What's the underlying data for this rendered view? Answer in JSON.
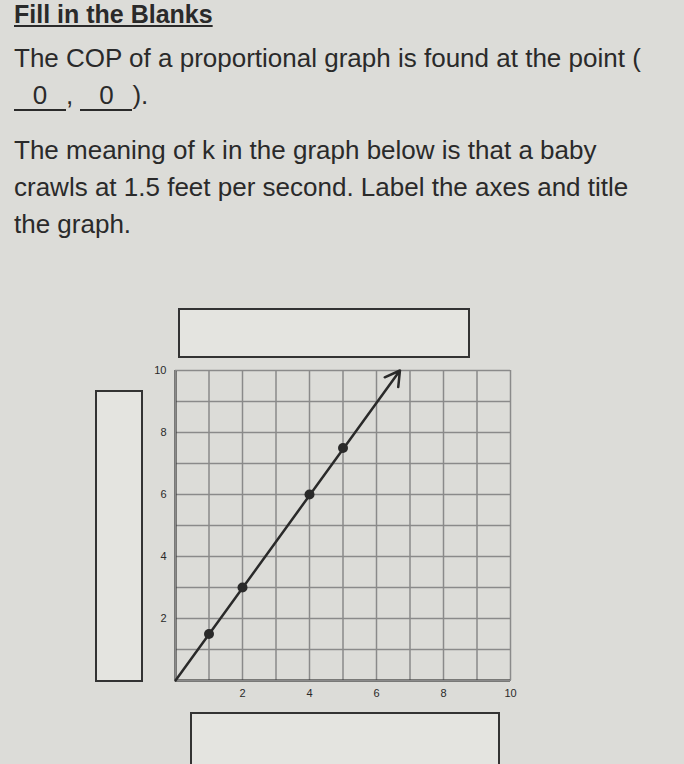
{
  "header": {
    "title": "Fill in the Blanks"
  },
  "question1": {
    "text_before": "The COP of a proportional graph is found at the point (",
    "blanks": [
      "0",
      "0"
    ],
    "separator": ",",
    "text_after": ")."
  },
  "question2": {
    "text": "The meaning of k in the graph below is that a baby crawls at 1.5 feet per second. Label the axes and title the graph."
  },
  "chart_data": {
    "type": "scatter",
    "x": [
      1,
      2,
      4,
      5
    ],
    "values": [
      1.5,
      3,
      6,
      7.5
    ],
    "line": {
      "x": [
        0,
        6.7
      ],
      "values": [
        0,
        10
      ]
    },
    "color": "#2a2a2a",
    "xlim": [
      0,
      10
    ],
    "ylim": [
      0,
      10
    ],
    "xticks": [
      2,
      4,
      6,
      8,
      10
    ],
    "yticks": [
      2,
      4,
      6,
      8,
      10
    ],
    "grid": true
  }
}
